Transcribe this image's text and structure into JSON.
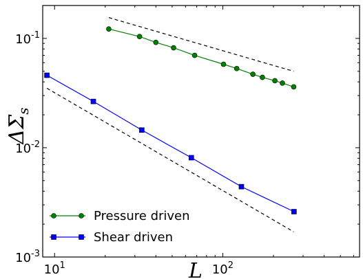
{
  "chart_data": {
    "type": "line",
    "xscale": "log",
    "yscale": "log",
    "xlim": [
      8.5,
      650
    ],
    "ylim": [
      0.001,
      0.2
    ],
    "xlabel": "L",
    "ylabel": "ΔΣs",
    "x_ticks": [
      {
        "value": 10,
        "base": "10",
        "exp": "1"
      },
      {
        "value": 100,
        "base": "10",
        "exp": "2"
      }
    ],
    "y_ticks": [
      {
        "value": 0.001,
        "base": "10",
        "exp": "-3"
      },
      {
        "value": 0.01,
        "base": "10",
        "exp": "-2"
      },
      {
        "value": 0.1,
        "base": "10",
        "exp": "-1"
      }
    ],
    "legend_position": "bottom-left",
    "grid": false,
    "series": [
      {
        "name": "Pressure driven",
        "color": "#008000",
        "marker": "circle",
        "points": [
          {
            "x": 21,
            "y": 0.122
          },
          {
            "x": 32,
            "y": 0.104
          },
          {
            "x": 40,
            "y": 0.092
          },
          {
            "x": 51,
            "y": 0.082
          },
          {
            "x": 68,
            "y": 0.07
          },
          {
            "x": 101,
            "y": 0.058
          },
          {
            "x": 121,
            "y": 0.053
          },
          {
            "x": 151,
            "y": 0.047
          },
          {
            "x": 172,
            "y": 0.044
          },
          {
            "x": 204,
            "y": 0.041
          },
          {
            "x": 226,
            "y": 0.039
          },
          {
            "x": 264,
            "y": 0.036
          }
        ]
      },
      {
        "name": "Shear driven",
        "color": "#0000ff",
        "marker": "square",
        "points": [
          {
            "x": 9,
            "y": 0.046
          },
          {
            "x": 17,
            "y": 0.0265
          },
          {
            "x": 33,
            "y": 0.0145
          },
          {
            "x": 65,
            "y": 0.0081
          },
          {
            "x": 129,
            "y": 0.0044
          },
          {
            "x": 265,
            "y": 0.0026
          }
        ]
      }
    ],
    "reference_lines": [
      {
        "style": "dashed",
        "color": "#000000",
        "from": {
          "x": 21,
          "y": 0.155
        },
        "to": {
          "x": 264,
          "y": 0.05
        }
      },
      {
        "style": "dashed",
        "color": "#000000",
        "from": {
          "x": 9,
          "y": 0.035
        },
        "to": {
          "x": 264,
          "y": 0.0017
        }
      }
    ]
  }
}
